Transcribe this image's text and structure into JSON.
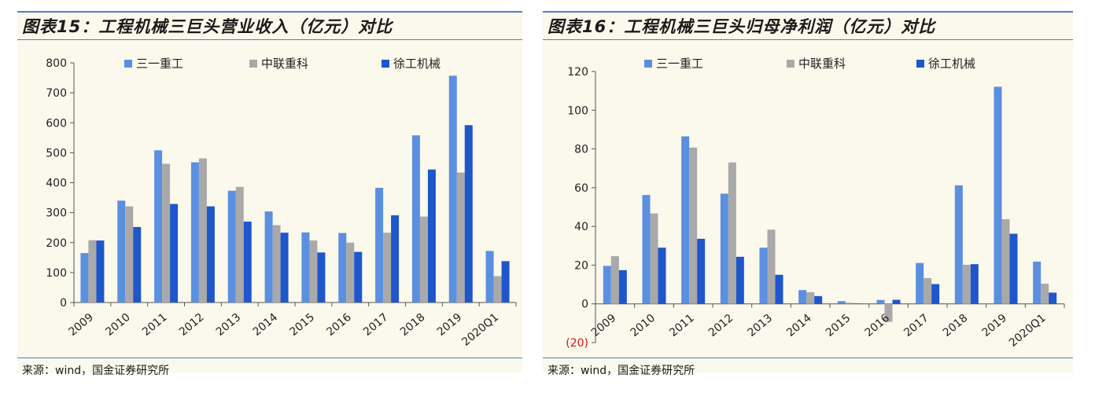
{
  "colors": {
    "sany": "#5b8fe0",
    "zoomlion": "#a9a9a9",
    "xcmg": "#1f56cc",
    "rule": "#4a7fd1",
    "negative_tick": "#e01010"
  },
  "panels": [
    {
      "title": "图表15：工程机械三巨头营业收入（亿元）对比",
      "source": "来源：wind，国金证券研究所"
    },
    {
      "title": "图表16：工程机械三巨头归母净利润（亿元）对比",
      "source": "来源：wind，国金证券研究所"
    }
  ],
  "chart_data": [
    {
      "type": "bar",
      "title": "图表15：工程机械三巨头营业收入（亿元）对比",
      "categories": [
        "2009",
        "2010",
        "2011",
        "2012",
        "2013",
        "2014",
        "2015",
        "2016",
        "2017",
        "2018",
        "2019",
        "2020Q1"
      ],
      "category_labels": [
        "2009",
        "2010",
        "2011",
        "2012",
        "2013",
        "2014",
        "2015",
        "2016",
        "2017",
        "2018",
        "2019",
        "2020Q1"
      ],
      "series": [
        {
          "name": "三一重工",
          "values": [
            165,
            340,
            508,
            468,
            373,
            304,
            234,
            232,
            383,
            558,
            757,
            172
          ]
        },
        {
          "name": "中联重科",
          "values": [
            208,
            321,
            463,
            481,
            386,
            258,
            207,
            200,
            233,
            287,
            434,
            88
          ]
        },
        {
          "name": "徐工机械",
          "values": [
            207,
            252,
            329,
            321,
            270,
            233,
            167,
            169,
            291,
            444,
            592,
            138
          ]
        }
      ],
      "yticks": [
        0,
        100,
        200,
        300,
        400,
        500,
        600,
        700,
        800
      ],
      "ytick_labels": [
        "0",
        "100",
        "200",
        "300",
        "400",
        "500",
        "600",
        "700",
        "800"
      ],
      "ylim": [
        0,
        800
      ],
      "grid": false,
      "legend": "top"
    },
    {
      "type": "bar",
      "title": "图表16：工程机械三巨头归母净利润（亿元）对比",
      "categories": [
        "2009",
        "2010",
        "2011",
        "2012",
        "2013",
        "2014",
        "2015",
        "2016",
        "2017",
        "2018",
        "2019",
        "2020Q1"
      ],
      "category_labels": [
        "2009",
        "2010",
        "2011",
        "2012",
        "2013",
        "2014",
        "2015",
        "2016",
        "2017",
        "2018",
        "2019",
        "2020Q1"
      ],
      "series": [
        {
          "name": "三一重工",
          "values": [
            19.6,
            56.2,
            86.5,
            56.9,
            29.0,
            7.1,
            1.4,
            2.0,
            21.1,
            61.2,
            112.1,
            21.8
          ]
        },
        {
          "name": "中联重科",
          "values": [
            24.6,
            46.7,
            80.7,
            73.0,
            38.3,
            6.0,
            0.6,
            -9.3,
            13.3,
            20.2,
            43.7,
            10.4
          ]
        },
        {
          "name": "徐工机械",
          "values": [
            17.4,
            29.0,
            33.6,
            24.3,
            15.0,
            4.0,
            0.2,
            2.1,
            10.2,
            20.5,
            36.2,
            5.8
          ]
        }
      ],
      "yticks": [
        -20,
        0,
        20,
        40,
        60,
        80,
        100,
        120
      ],
      "ytick_labels": [
        "(20)",
        "0",
        "20",
        "40",
        "60",
        "80",
        "100",
        "120"
      ],
      "ylim": [
        -20,
        120
      ],
      "grid": false,
      "legend": "top"
    }
  ]
}
